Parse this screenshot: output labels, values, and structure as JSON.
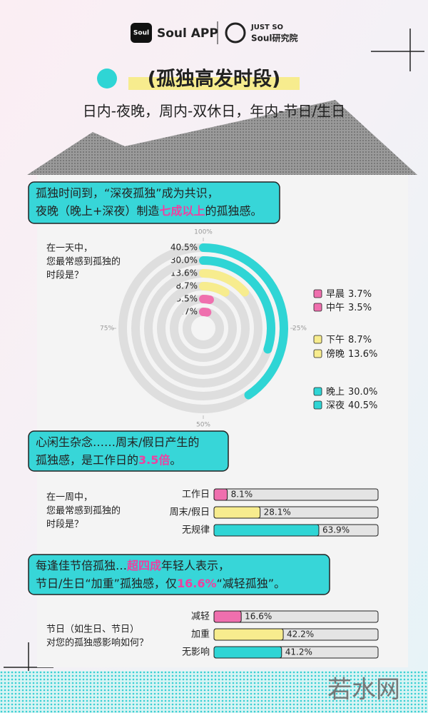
{
  "header": {
    "brand": "Soul APP",
    "lab_top": "JUST SO",
    "lab_bottom": "Soul研究院",
    "title": "(孤独高发时段)",
    "subtitle": "日内-夜晚，周内-双休日，年内-节日/生日"
  },
  "callouts": [
    [
      [
        "孤独时间到，“深夜孤独”成为共识，"
      ],
      [
        "夜晚（晚上+深夜）制造",
        {
          "text": "七成以上",
          "highlight": true
        },
        "的孤独感。"
      ]
    ],
    [
      [
        "心闲生杂念……周末/假日产生的"
      ],
      [
        "孤独感，是工作日的",
        {
          "text": "3.5倍",
          "highlight": true
        },
        "。"
      ]
    ],
    [
      [
        "每逢佳节倍孤独…",
        {
          "text": "超四成",
          "highlight": true
        },
        "年轻人表示，"
      ],
      [
        "节日/生日“加重”孤独感，仅",
        {
          "text": "16.6%",
          "highlight": true
        },
        "“减轻孤独”。"
      ]
    ]
  ],
  "watermark": "若水网",
  "chart_data": [
    {
      "type": "radial_bar",
      "question": [
        "在一天中，",
        "您最常感到孤独的",
        "时段是？"
      ],
      "categories": [
        "早晨",
        "中午",
        "下午",
        "傍晚",
        "晚上",
        "深夜"
      ],
      "values": [
        3.7,
        3.5,
        8.7,
        13.6,
        30.0,
        40.5
      ],
      "value_labels": [
        "3.7%",
        "3.5%",
        "8.7%",
        "13.6%",
        "30.0%",
        "40.5%"
      ],
      "colors": [
        "#ef6fae",
        "#ef6fae",
        "#f7ec8e",
        "#f7ec8e",
        "#2fd5d5",
        "#2fd5d5"
      ],
      "ylim": [
        0,
        100
      ],
      "yticks": [
        {
          "value": 100,
          "label": "100%"
        },
        {
          "value": 25,
          "label": "25%"
        },
        {
          "value": 50,
          "label": "50%"
        },
        {
          "value": 75,
          "label": "75%"
        }
      ]
    },
    {
      "type": "hbar",
      "question": [
        "在一周中，",
        "您最常感到孤独的",
        "时段是？"
      ],
      "categories": [
        "工作日",
        "周末/假日",
        "无规律"
      ],
      "values": [
        8.1,
        28.1,
        63.9
      ],
      "value_labels": [
        "8.1%",
        "28.1%",
        "63.9%"
      ],
      "colors": [
        "#ef6fae",
        "#f7ec8e",
        "#2fd5d5"
      ],
      "xlim": [
        0,
        100
      ]
    },
    {
      "type": "hbar",
      "question": [
        "节日（如生日、节日）",
        "对您的孤独感影响如何？"
      ],
      "categories": [
        "减轻",
        "加重",
        "无影响"
      ],
      "values": [
        16.6,
        42.2,
        41.2
      ],
      "value_labels": [
        "16.6%",
        "42.2%",
        "41.2%"
      ],
      "colors": [
        "#ef6fae",
        "#f7ec8e",
        "#2fd5d5"
      ],
      "xlim": [
        0,
        100
      ]
    }
  ]
}
